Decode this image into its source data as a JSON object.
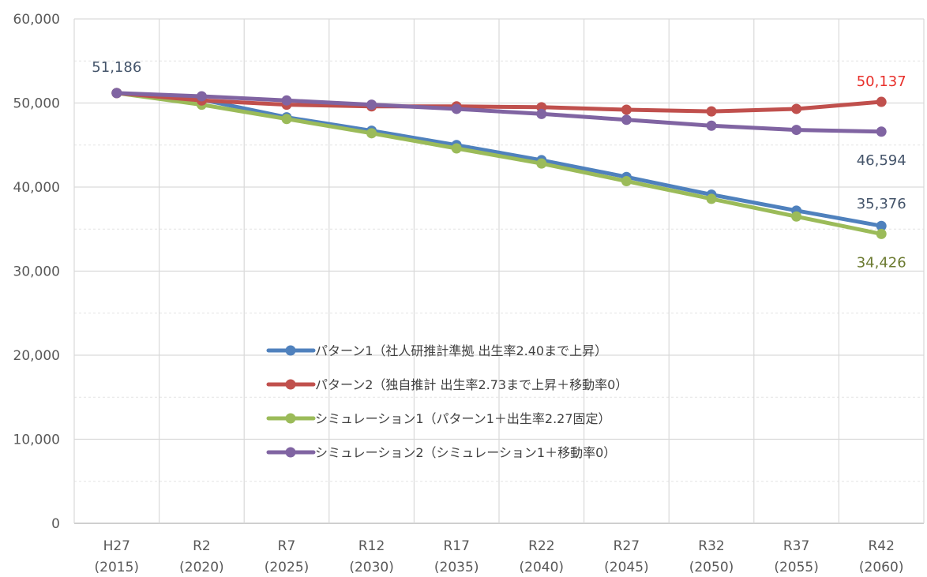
{
  "chart_data": {
    "type": "line",
    "categories": [
      [
        "H27",
        "(2015)"
      ],
      [
        "R2",
        "(2020)"
      ],
      [
        "R7",
        "(2025)"
      ],
      [
        "R12",
        "(2030)"
      ],
      [
        "R17",
        "(2035)"
      ],
      [
        "R22",
        "(2040)"
      ],
      [
        "R27",
        "(2045)"
      ],
      [
        "R32",
        "(2050)"
      ],
      [
        "R37",
        "(2055)"
      ],
      [
        "R42",
        "(2060)"
      ]
    ],
    "ylim": [
      0,
      60000
    ],
    "yticks": [
      0,
      10000,
      20000,
      30000,
      40000,
      50000,
      60000
    ],
    "ytick_labels": [
      "0",
      "10,000",
      "20,000",
      "30,000",
      "40,000",
      "50,000",
      "60,000"
    ],
    "grid": true,
    "legend_position": "center",
    "series": [
      {
        "name": "パターン1（社人研推計準拠 出生率2.40まで上昇）",
        "color": "#4f81bd",
        "values": [
          51186,
          50400,
          48300,
          46700,
          45000,
          43200,
          41200,
          39100,
          37200,
          35376
        ]
      },
      {
        "name": "パターン2（独自推計 出生率2.73まで上昇＋移動率0）",
        "color": "#c0504d",
        "values": [
          51186,
          50300,
          49800,
          49600,
          49600,
          49500,
          49200,
          49000,
          49300,
          50137
        ]
      },
      {
        "name": "シミュレーション1（パターン1＋出生率2.27固定）",
        "color": "#9bbb59",
        "values": [
          51186,
          49800,
          48100,
          46400,
          44600,
          42800,
          40700,
          38600,
          36500,
          34426
        ]
      },
      {
        "name": "シミュレーション2（シミュレーション1＋移動率0）",
        "color": "#8064a2",
        "values": [
          51186,
          50800,
          50300,
          49800,
          49300,
          48700,
          48000,
          47300,
          46800,
          46594
        ]
      }
    ],
    "data_labels": [
      {
        "text": "51,186",
        "series": 3,
        "index": 0,
        "color": "#44546a"
      },
      {
        "text": "50,137",
        "series": 1,
        "index": 9,
        "color": "#e8302b"
      },
      {
        "text": "46,594",
        "series": 3,
        "index": 9,
        "color": "#44546a"
      },
      {
        "text": "35,376",
        "series": 0,
        "index": 9,
        "color": "#44546a"
      },
      {
        "text": "34,426",
        "series": 2,
        "index": 9,
        "color": "#6b7a30"
      }
    ]
  }
}
